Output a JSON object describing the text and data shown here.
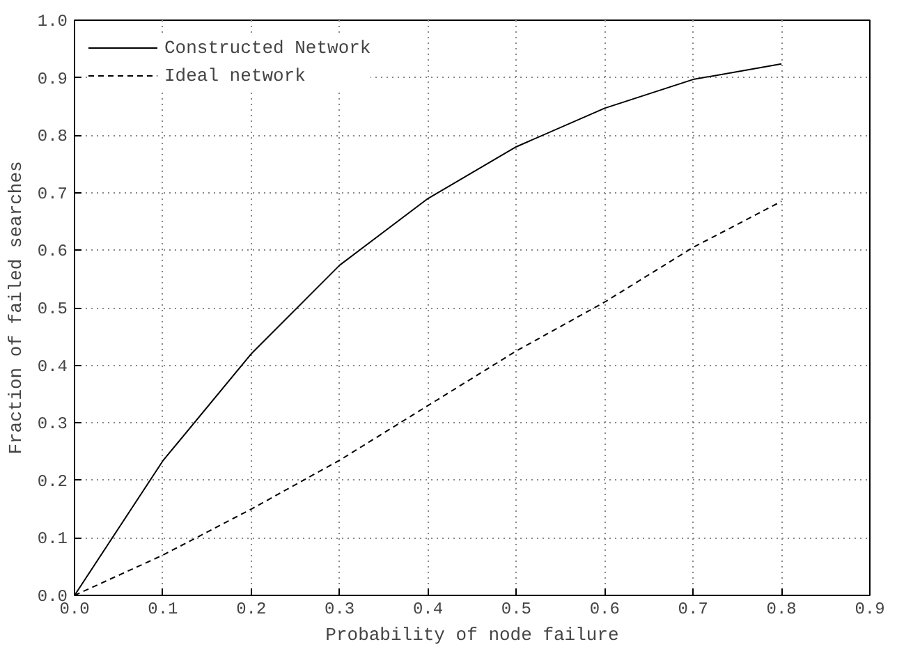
{
  "chart_data": {
    "type": "line",
    "xlabel": "Probability of node failure",
    "ylabel": "Fraction of failed searches",
    "x": [
      0,
      0.1,
      0.2,
      0.3,
      0.4,
      0.5,
      0.6,
      0.7,
      0.8
    ],
    "series": [
      {
        "name": "Constructed Network",
        "color": "#000000",
        "line_style": "solid",
        "values": [
          0,
          0.234,
          0.42,
          0.574,
          0.69,
          0.78,
          0.847,
          0.897,
          0.924
        ]
      },
      {
        "name": "Ideal network",
        "color": "#000000",
        "line_style": "dashed",
        "values": [
          0,
          0.07,
          0.15,
          0.235,
          0.33,
          0.425,
          0.51,
          0.605,
          0.685
        ]
      }
    ],
    "xlim": [
      0,
      0.9
    ],
    "ylim": [
      0,
      1.0
    ],
    "xticks": [
      {
        "value": 0,
        "label": "0.0"
      },
      0.1,
      0.2,
      0.3,
      0.4,
      0.5,
      0.6,
      0.7,
      0.8,
      0.9
    ],
    "yticks": [
      {
        "value": 0,
        "label": "0.0"
      },
      0.1,
      0.2,
      0.3,
      0.4,
      0.5,
      0.6,
      0.7,
      0.8,
      0.9,
      {
        "value": 1.0,
        "label": "1.0"
      }
    ],
    "grid": true,
    "legend": "top left",
    "marker": "none"
  }
}
